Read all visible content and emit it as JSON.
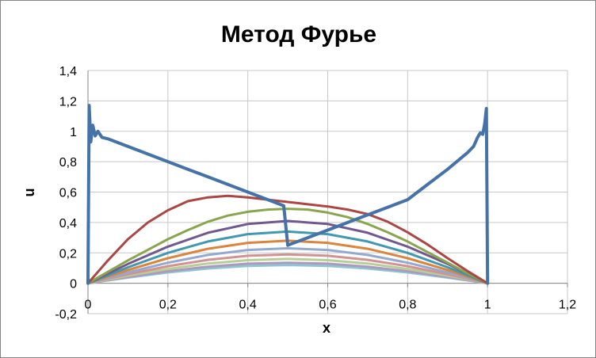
{
  "chart_data": {
    "type": "line",
    "title": "Метод Фурье",
    "xlabel": "x",
    "ylabel": "u",
    "xlim": [
      0,
      1.2
    ],
    "ylim": [
      -0.2,
      1.4
    ],
    "x_ticks": [
      0,
      0.2,
      0.4,
      0.6,
      0.8,
      1,
      1.2
    ],
    "x_tick_labels": [
      "0",
      "0,2",
      "0,4",
      "0,6",
      "0,8",
      "1",
      "1,2"
    ],
    "y_ticks": [
      -0.2,
      0,
      0.2,
      0.4,
      0.6,
      0.8,
      1,
      1.2,
      1.4
    ],
    "y_tick_labels": [
      "-0,2",
      "0",
      "0,2",
      "0,4",
      "0,6",
      "0,8",
      "1",
      "1,2",
      "1,4"
    ],
    "grid": true,
    "legend": "none",
    "series": [
      {
        "color": "#4572A7",
        "x": [
          0,
          0.003,
          0.007,
          0.012,
          0.018,
          0.025,
          0.035,
          0.05,
          0.1,
          0.15,
          0.2,
          0.25,
          0.3,
          0.35,
          0.4,
          0.45,
          0.49,
          0.5,
          0.51,
          0.55,
          0.6,
          0.65,
          0.7,
          0.75,
          0.8,
          0.85,
          0.9,
          0.95,
          0.965,
          0.975,
          0.982,
          0.988,
          0.993,
          0.997,
          1
        ],
        "y": [
          0,
          1.17,
          0.93,
          1.04,
          0.97,
          1.0,
          0.96,
          0.95,
          0.9,
          0.85,
          0.8,
          0.75,
          0.7,
          0.65,
          0.6,
          0.55,
          0.51,
          0.25,
          0.26,
          0.3,
          0.35,
          0.4,
          0.45,
          0.5,
          0.55,
          0.65,
          0.75,
          0.86,
          0.9,
          0.96,
          0.99,
          0.98,
          1.05,
          1.15,
          0
        ]
      },
      {
        "color": "#AA4643",
        "x": [
          0,
          0.05,
          0.1,
          0.15,
          0.2,
          0.25,
          0.3,
          0.35,
          0.4,
          0.45,
          0.5,
          0.55,
          0.6,
          0.65,
          0.7,
          0.75,
          0.8,
          0.85,
          0.9,
          0.95,
          1
        ],
        "y": [
          0,
          0.15,
          0.29,
          0.4,
          0.48,
          0.54,
          0.565,
          0.575,
          0.565,
          0.55,
          0.535,
          0.52,
          0.505,
          0.485,
          0.455,
          0.405,
          0.335,
          0.255,
          0.165,
          0.08,
          0
        ]
      },
      {
        "color": "#89A54E",
        "x": [
          0,
          0.05,
          0.1,
          0.15,
          0.2,
          0.25,
          0.3,
          0.35,
          0.4,
          0.45,
          0.5,
          0.55,
          0.6,
          0.65,
          0.7,
          0.75,
          0.8,
          0.85,
          0.9,
          0.95,
          1
        ],
        "y": [
          0,
          0.075,
          0.15,
          0.22,
          0.29,
          0.35,
          0.405,
          0.445,
          0.47,
          0.485,
          0.49,
          0.485,
          0.465,
          0.435,
          0.39,
          0.335,
          0.275,
          0.205,
          0.135,
          0.065,
          0
        ]
      },
      {
        "color": "#71588F",
        "x": [
          0,
          0.1,
          0.2,
          0.3,
          0.4,
          0.5,
          0.6,
          0.7,
          0.8,
          0.9,
          1
        ],
        "y": [
          0,
          0.127,
          0.241,
          0.332,
          0.39,
          0.41,
          0.39,
          0.332,
          0.241,
          0.127,
          0
        ]
      },
      {
        "color": "#4198AF",
        "x": [
          0,
          0.1,
          0.2,
          0.3,
          0.4,
          0.5,
          0.6,
          0.7,
          0.8,
          0.9,
          1
        ],
        "y": [
          0,
          0.105,
          0.2,
          0.275,
          0.323,
          0.34,
          0.323,
          0.275,
          0.2,
          0.105,
          0
        ]
      },
      {
        "color": "#DB843D",
        "x": [
          0,
          0.1,
          0.2,
          0.3,
          0.4,
          0.5,
          0.6,
          0.7,
          0.8,
          0.9,
          1
        ],
        "y": [
          0,
          0.087,
          0.165,
          0.227,
          0.266,
          0.28,
          0.266,
          0.227,
          0.165,
          0.087,
          0
        ]
      },
      {
        "color": "#93A9CF",
        "x": [
          0,
          0.1,
          0.2,
          0.3,
          0.4,
          0.5,
          0.6,
          0.7,
          0.8,
          0.9,
          1
        ],
        "y": [
          0,
          0.071,
          0.135,
          0.186,
          0.219,
          0.23,
          0.219,
          0.186,
          0.135,
          0.071,
          0
        ]
      },
      {
        "color": "#D19392",
        "x": [
          0,
          0.1,
          0.2,
          0.3,
          0.4,
          0.5,
          0.6,
          0.7,
          0.8,
          0.9,
          1
        ],
        "y": [
          0,
          0.059,
          0.112,
          0.154,
          0.181,
          0.19,
          0.181,
          0.154,
          0.112,
          0.059,
          0
        ]
      },
      {
        "color": "#B9CD96",
        "x": [
          0,
          0.1,
          0.2,
          0.3,
          0.4,
          0.5,
          0.6,
          0.7,
          0.8,
          0.9,
          1
        ],
        "y": [
          0,
          0.05,
          0.094,
          0.13,
          0.152,
          0.16,
          0.152,
          0.13,
          0.094,
          0.05,
          0
        ]
      },
      {
        "color": "#A99BBD",
        "x": [
          0,
          0.1,
          0.2,
          0.3,
          0.4,
          0.5,
          0.6,
          0.7,
          0.8,
          0.9,
          1
        ],
        "y": [
          0,
          0.042,
          0.079,
          0.109,
          0.129,
          0.135,
          0.129,
          0.109,
          0.079,
          0.042,
          0
        ]
      },
      {
        "color": "#91C3D5",
        "x": [
          0,
          0.1,
          0.2,
          0.3,
          0.4,
          0.5,
          0.6,
          0.7,
          0.8,
          0.9,
          1
        ],
        "y": [
          0,
          0.037,
          0.071,
          0.097,
          0.114,
          0.12,
          0.114,
          0.097,
          0.071,
          0.037,
          0
        ]
      }
    ]
  }
}
